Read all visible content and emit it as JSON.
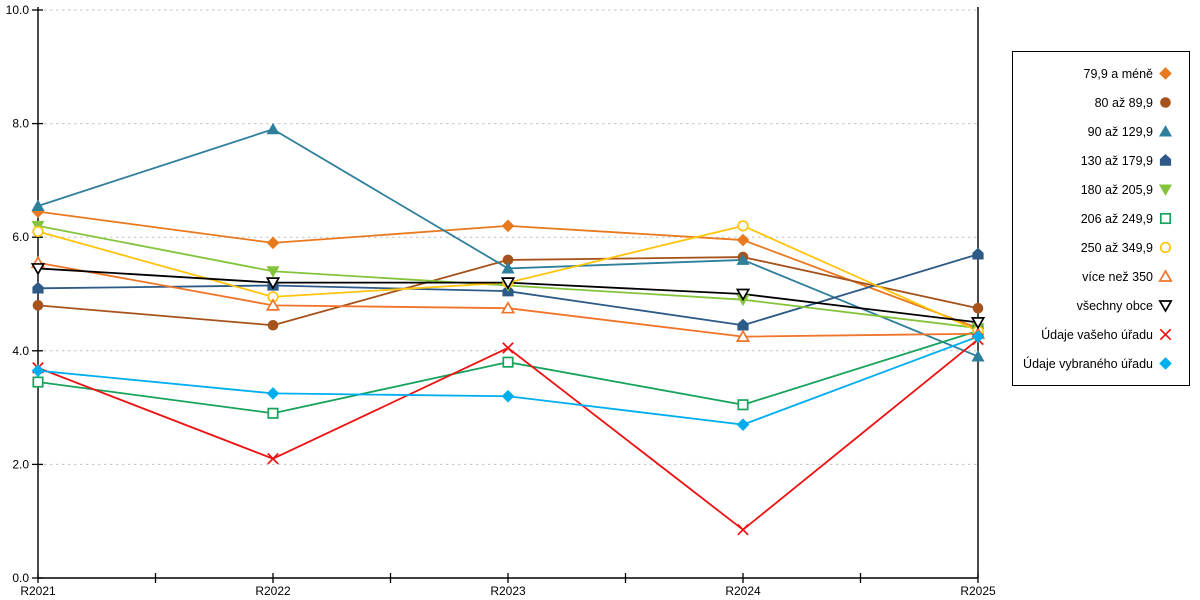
{
  "chart_data": {
    "type": "line",
    "title": "",
    "xlabel": "",
    "ylabel": "",
    "x_categories": [
      "R2021",
      "R2022",
      "R2023",
      "R2024",
      "R2025"
    ],
    "y_tick_labels": [
      "0.0",
      "2.0",
      "4.0",
      "6.0",
      "8.0",
      "10.0"
    ],
    "y_tick_values": [
      0,
      2,
      4,
      6,
      8,
      10
    ],
    "ylim": [
      0,
      10
    ],
    "grid": "horizontal-dashed",
    "grid_color": "#c2c2c2",
    "axis_color": "#000000",
    "legend_position": "right-outside",
    "series": [
      {
        "name": "79,9 a méně",
        "marker": "diamond",
        "filled": true,
        "color": "#e8791e",
        "values": [
          6.45,
          5.9,
          6.2,
          5.95,
          4.4
        ]
      },
      {
        "name": "80 až 89,9",
        "marker": "circle",
        "filled": true,
        "color": "#a6521c",
        "values": [
          4.8,
          4.45,
          5.6,
          5.65,
          4.75
        ]
      },
      {
        "name": "90 až 129,9",
        "marker": "triangle-up",
        "filled": true,
        "color": "#2e7f9b",
        "values": [
          6.55,
          7.9,
          5.45,
          5.6,
          3.9
        ]
      },
      {
        "name": "130 až 179,9",
        "marker": "pentagon",
        "filled": true,
        "color": "#2d5a87",
        "values": [
          5.1,
          5.15,
          5.05,
          4.45,
          5.7
        ]
      },
      {
        "name": "180 až 205,9",
        "marker": "triangle-down",
        "filled": true,
        "color": "#84c43c",
        "values": [
          6.2,
          5.4,
          5.15,
          4.9,
          4.4
        ]
      },
      {
        "name": "206 až 249,9",
        "marker": "square",
        "filled": false,
        "color": "#17a35b",
        "values": [
          3.45,
          2.9,
          3.8,
          3.05,
          4.35
        ]
      },
      {
        "name": "250 až 349,9",
        "marker": "circle",
        "filled": false,
        "color": "#ffc40c",
        "values": [
          6.1,
          4.95,
          5.2,
          6.2,
          4.35
        ]
      },
      {
        "name": "více než 350",
        "marker": "triangle-up",
        "filled": false,
        "color": "#f0752b",
        "values": [
          5.55,
          4.8,
          4.75,
          4.25,
          4.3
        ]
      },
      {
        "name": "všechny obce",
        "marker": "triangle-down",
        "filled": false,
        "color": "#000000",
        "values": [
          5.45,
          5.2,
          5.2,
          5.0,
          4.5
        ]
      },
      {
        "name": "Údaje vašeho úřadu",
        "marker": "x",
        "filled": false,
        "color": "#ee1111",
        "values": [
          3.7,
          2.1,
          4.05,
          0.85,
          4.2
        ]
      },
      {
        "name": "Údaje vybraného úřadu",
        "marker": "diamond",
        "filled": true,
        "color": "#00aeef",
        "values": [
          3.65,
          3.25,
          3.2,
          2.7,
          4.25
        ]
      }
    ]
  }
}
